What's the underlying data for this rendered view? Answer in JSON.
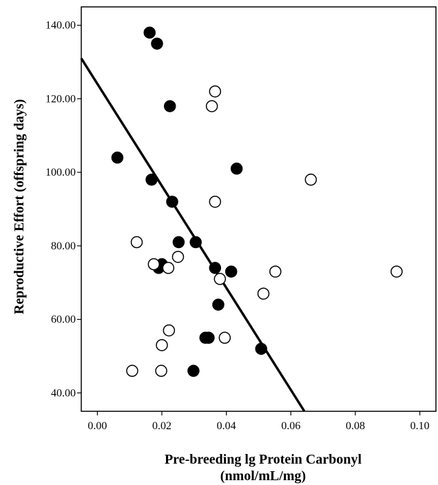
{
  "chart_data": {
    "type": "scatter",
    "title": "",
    "xlabel_lines": [
      "Pre-breeding lg Protein Carbonyl",
      "(nmol/mL/mg)"
    ],
    "ylabel": "Reproductive Effort (offspring days)",
    "xlim": [
      -0.005,
      0.105
    ],
    "ylim": [
      35,
      145
    ],
    "x_ticks": [
      0.0,
      0.02,
      0.04,
      0.06,
      0.08,
      0.1
    ],
    "x_tick_labels": [
      "0.00",
      "0.02",
      "0.04",
      "0.06",
      "0.08",
      "0.10"
    ],
    "y_ticks": [
      40,
      60,
      80,
      100,
      120,
      140
    ],
    "y_tick_labels": [
      "40.00",
      "60.00",
      "80.00",
      "100.00",
      "120.00",
      "140.00"
    ],
    "grid": false,
    "legend": "none",
    "series": [
      {
        "marker": "filled-circle",
        "color": "#000000",
        "points": [
          {
            "x": 0.0162,
            "y": 138
          },
          {
            "x": 0.0185,
            "y": 135
          },
          {
            "x": 0.0225,
            "y": 118
          },
          {
            "x": 0.0062,
            "y": 104
          },
          {
            "x": 0.0432,
            "y": 101
          },
          {
            "x": 0.0168,
            "y": 98
          },
          {
            "x": 0.0232,
            "y": 92
          },
          {
            "x": 0.0252,
            "y": 81
          },
          {
            "x": 0.0305,
            "y": 81
          },
          {
            "x": 0.02,
            "y": 75
          },
          {
            "x": 0.019,
            "y": 74
          },
          {
            "x": 0.0365,
            "y": 74
          },
          {
            "x": 0.0415,
            "y": 73
          },
          {
            "x": 0.0375,
            "y": 64
          },
          {
            "x": 0.0335,
            "y": 55
          },
          {
            "x": 0.0345,
            "y": 55
          },
          {
            "x": 0.0508,
            "y": 52
          },
          {
            "x": 0.0298,
            "y": 46
          }
        ]
      },
      {
        "marker": "open-circle",
        "color": "#000000",
        "points": [
          {
            "x": 0.0365,
            "y": 122
          },
          {
            "x": 0.0355,
            "y": 118
          },
          {
            "x": 0.0662,
            "y": 98
          },
          {
            "x": 0.0365,
            "y": 92
          },
          {
            "x": 0.0122,
            "y": 81
          },
          {
            "x": 0.0175,
            "y": 75
          },
          {
            "x": 0.022,
            "y": 74
          },
          {
            "x": 0.025,
            "y": 77
          },
          {
            "x": 0.038,
            "y": 71
          },
          {
            "x": 0.0552,
            "y": 73
          },
          {
            "x": 0.0515,
            "y": 67
          },
          {
            "x": 0.0928,
            "y": 73
          },
          {
            "x": 0.0222,
            "y": 57
          },
          {
            "x": 0.02,
            "y": 53
          },
          {
            "x": 0.0395,
            "y": 55
          },
          {
            "x": 0.0108,
            "y": 46
          },
          {
            "x": 0.0198,
            "y": 46
          }
        ]
      }
    ],
    "fit_line": {
      "x_start": -0.005,
      "y_start": 131,
      "x_end": 0.0642,
      "y_end": 35
    }
  }
}
